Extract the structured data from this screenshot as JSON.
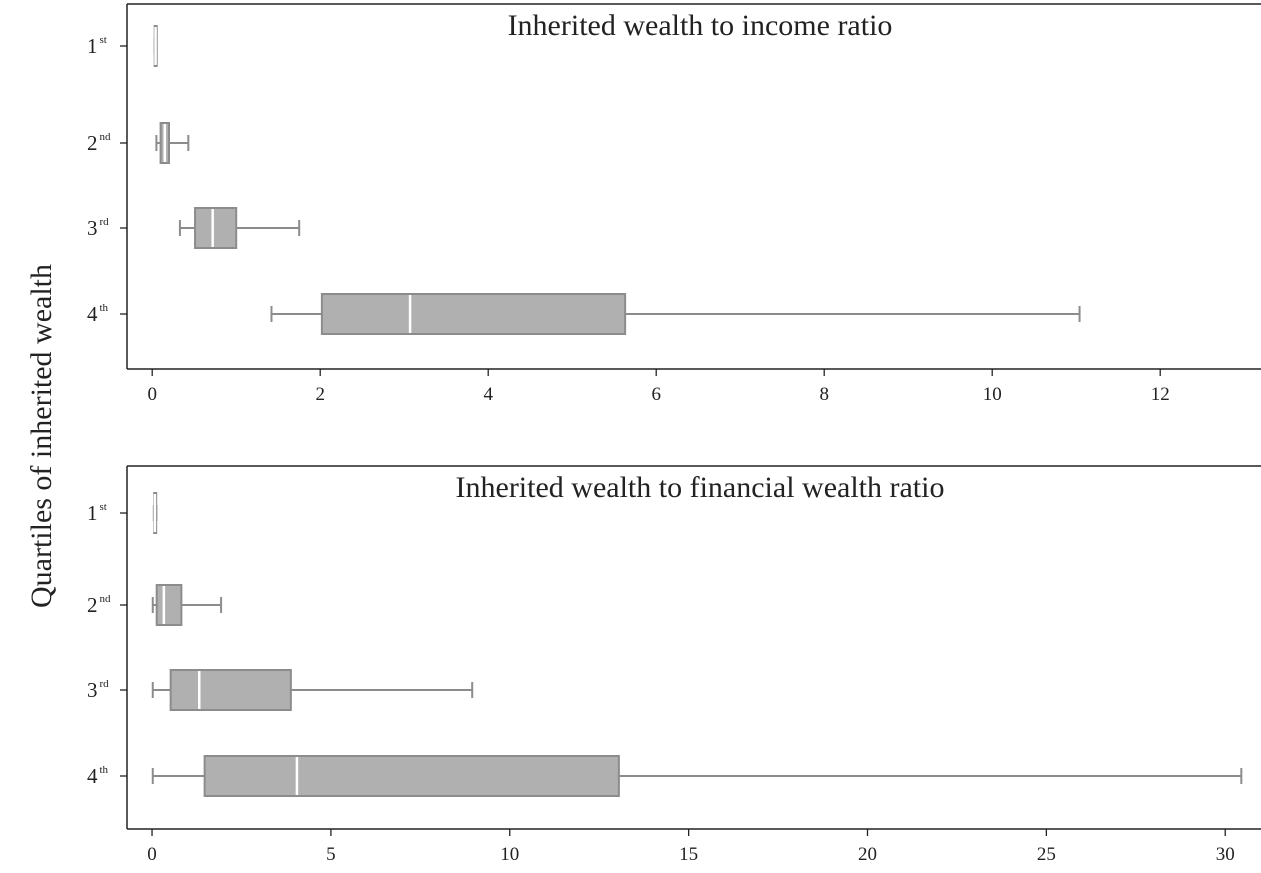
{
  "figure": {
    "ylabel": "Quartiles of inherited wealth"
  },
  "chart_data": [
    {
      "type": "boxplot",
      "orientation": "horizontal",
      "title": "Inherited wealth to income ratio",
      "xlabel": "",
      "ylabel": "Quartiles of inherited wealth",
      "xlim": [
        -0.3,
        13.2
      ],
      "xticks": [
        0,
        2,
        4,
        6,
        8,
        10,
        12
      ],
      "grid": false,
      "categories": [
        {
          "base": "1",
          "sup": "st"
        },
        {
          "base": "2",
          "sup": "nd"
        },
        {
          "base": "3",
          "sup": "rd"
        },
        {
          "base": "4",
          "sup": "th"
        }
      ],
      "boxes": [
        {
          "whisker_low": 0.03,
          "q1": 0.03,
          "median": 0.04,
          "q3": 0.04,
          "whisker_high": 0.05
        },
        {
          "whisker_low": 0.05,
          "q1": 0.1,
          "median": 0.15,
          "q3": 0.2,
          "whisker_high": 0.43
        },
        {
          "whisker_low": 0.33,
          "q1": 0.51,
          "median": 0.72,
          "q3": 1.0,
          "whisker_high": 1.75
        },
        {
          "whisker_low": 1.42,
          "q1": 2.02,
          "median": 3.07,
          "q3": 5.63,
          "whisker_high": 11.04
        }
      ],
      "box_color": "#b0b0b0",
      "box_edge_color": "#8c8c8c",
      "median_color": "#ffffff"
    },
    {
      "type": "boxplot",
      "orientation": "horizontal",
      "title": "Inherited wealth to financial wealth ratio",
      "xlabel": "",
      "ylabel": "Quartiles of inherited wealth",
      "xlim": [
        -0.7,
        31.0
      ],
      "xticks": [
        0,
        5,
        10,
        15,
        20,
        25,
        30
      ],
      "grid": false,
      "categories": [
        {
          "base": "1",
          "sup": "st"
        },
        {
          "base": "2",
          "sup": "nd"
        },
        {
          "base": "3",
          "sup": "rd"
        },
        {
          "base": "4",
          "sup": "th"
        }
      ],
      "boxes": [
        {
          "whisker_low": 0.05,
          "q1": 0.06,
          "median": 0.08,
          "q3": 0.1,
          "whisker_high": 0.12
        },
        {
          "whisker_low": 0.02,
          "q1": 0.13,
          "median": 0.33,
          "q3": 0.82,
          "whisker_high": 1.93
        },
        {
          "whisker_low": 0.02,
          "q1": 0.52,
          "median": 1.32,
          "q3": 3.88,
          "whisker_high": 8.95
        },
        {
          "whisker_low": 0.02,
          "q1": 1.47,
          "median": 4.05,
          "q3": 13.05,
          "whisker_high": 30.45
        }
      ],
      "box_color": "#b0b0b0",
      "box_edge_color": "#8c8c8c",
      "median_color": "#ffffff"
    }
  ]
}
